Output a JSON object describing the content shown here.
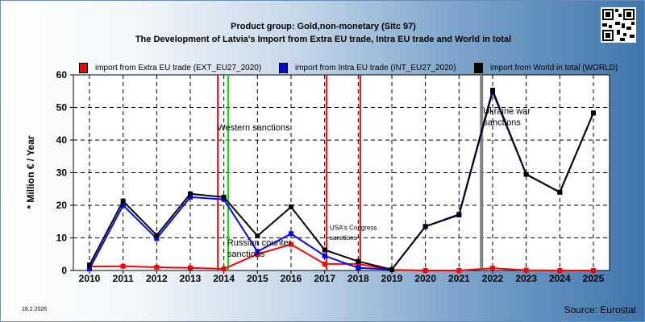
{
  "chart_data": {
    "type": "line",
    "title": "Product group: Gold,non-monetary (Sitc 97)",
    "subtitle": "The Development of Latvia's Import from Extra EU trade, Intra EU trade and World in total",
    "ylabel": "* Million € / Year",
    "xlabel": "",
    "ylim": [
      0,
      60
    ],
    "yticks": [
      0,
      10,
      20,
      30,
      40,
      50,
      60
    ],
    "grid": true,
    "legend_position": "top",
    "x": [
      2010,
      2011,
      2012,
      2013,
      2014,
      2015,
      2016,
      2017,
      2018,
      2019,
      2020,
      2021,
      2022,
      2023,
      2024,
      2025
    ],
    "series": [
      {
        "name": "import from Extra EU trade (EXT_EU27_2020)",
        "color": "#ff0000",
        "values": [
          1.2,
          1.3,
          1.0,
          0.8,
          0.5,
          5.0,
          8.0,
          2.0,
          2.0,
          0.2,
          0,
          0,
          0.7,
          0.1,
          0,
          0
        ]
      },
      {
        "name": "import from Intra EU trade (INT_EU27_2020)",
        "color": "#0000ff",
        "values": [
          0.5,
          20.0,
          9.8,
          22.5,
          21.8,
          5.8,
          11.3,
          4.5,
          0.8,
          0.3,
          13.5,
          17.0,
          54.8,
          29.5,
          24.0,
          48.3
        ]
      },
      {
        "name": "import from World in total (WORLD)",
        "color": "#000000",
        "values": [
          1.7,
          21.3,
          10.8,
          23.5,
          22.5,
          10.6,
          19.5,
          6.3,
          2.8,
          0.3,
          13.5,
          17.2,
          55.3,
          29.5,
          24.0,
          48.3
        ]
      }
    ],
    "events": [
      {
        "x": 2013.82,
        "color": "#ff0000"
      },
      {
        "x": 2014.13,
        "color": "#00dd00"
      },
      {
        "x": 2017.06,
        "color": "#ff0000"
      },
      {
        "x": 2018.06,
        "color": "#ff0000"
      },
      {
        "x": 2021.67,
        "color": "#808080"
      }
    ],
    "annotations": [
      {
        "text": "Western sanctions",
        "x": 2013.8,
        "y": 43,
        "size": 11
      },
      {
        "text": "Russian counter",
        "x": 2014.1,
        "y": 7.7,
        "size": 11
      },
      {
        "text": "sanctions",
        "x": 2014.1,
        "y": 4.2,
        "size": 11
      },
      {
        "text": "USA's Congress",
        "x": 2017.15,
        "y": 12.5,
        "size": 8
      },
      {
        "text": "sanctions",
        "x": 2017.15,
        "y": 9.4,
        "size": 8
      },
      {
        "text": "Ukraine war",
        "x": 2021.72,
        "y": 48.0,
        "size": 11
      },
      {
        "text": "sanctions",
        "x": 2021.72,
        "y": 44.6,
        "size": 11
      }
    ]
  },
  "footer": {
    "date": "18.2.2026",
    "source": "Source: Eurostat"
  }
}
